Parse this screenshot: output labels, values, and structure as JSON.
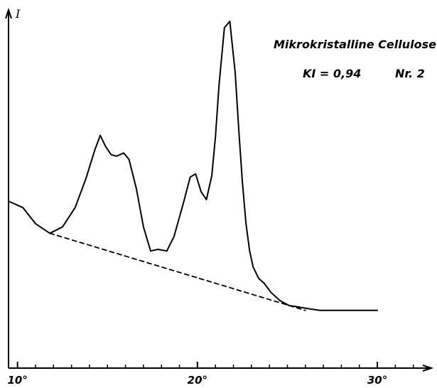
{
  "chart_data": {
    "type": "line",
    "title": "Mikrokristalline Cellulose",
    "annotations": {
      "ki": "KI = 0,94",
      "number": "Nr. 2"
    },
    "ylabel": "I",
    "xlabel": "",
    "xlim": [
      9.5,
      33
    ],
    "ylim": [
      0,
      1
    ],
    "x_tick_labels": [
      {
        "value": 10,
        "label": "10°"
      },
      {
        "value": 20,
        "label": "20°"
      },
      {
        "value": 30,
        "label": "30°"
      }
    ],
    "x_minor_ticks": [
      10,
      11,
      12,
      13,
      14,
      15,
      16,
      17,
      18,
      19,
      20,
      21,
      22,
      23,
      24,
      25,
      26,
      27,
      28,
      29,
      30,
      31,
      32
    ],
    "grid": false,
    "legend": "none",
    "series": [
      {
        "style": "solid",
        "x": [
          9.5,
          10.3,
          11.0,
          11.8,
          12.5,
          13.2,
          13.8,
          14.3,
          14.6,
          14.9,
          15.2,
          15.5,
          15.9,
          16.2,
          16.6,
          17.0,
          17.4,
          17.8,
          18.3,
          18.7,
          19.2,
          19.6,
          19.9,
          20.2,
          20.5,
          20.8,
          21.0,
          21.2,
          21.5,
          21.8,
          22.1,
          22.3,
          22.5,
          22.7,
          22.9,
          23.1,
          23.4,
          23.7,
          24.1,
          24.6,
          25.1,
          25.7,
          26.2,
          26.8,
          27.4,
          28.0,
          28.5,
          29.2,
          30.0
        ],
        "y": [
          0.44,
          0.42,
          0.37,
          0.34,
          0.36,
          0.42,
          0.51,
          0.6,
          0.645,
          0.61,
          0.585,
          0.58,
          0.59,
          0.57,
          0.48,
          0.36,
          0.285,
          0.29,
          0.285,
          0.33,
          0.43,
          0.515,
          0.525,
          0.47,
          0.445,
          0.52,
          0.64,
          0.8,
          0.98,
          1.0,
          0.84,
          0.66,
          0.5,
          0.37,
          0.285,
          0.235,
          0.2,
          0.185,
          0.155,
          0.13,
          0.115,
          0.11,
          0.105,
          0.1,
          0.1,
          0.1,
          0.1,
          0.1,
          0.1
        ]
      },
      {
        "style": "dashed",
        "x": [
          11.8,
          26.0
        ],
        "y": [
          0.34,
          0.1
        ]
      }
    ]
  }
}
